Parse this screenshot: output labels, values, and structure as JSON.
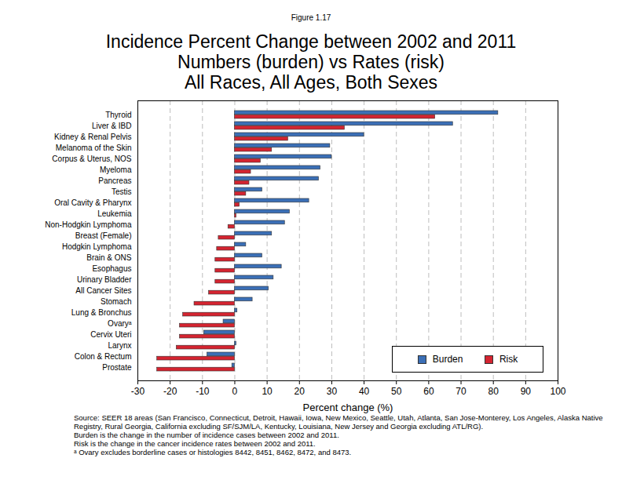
{
  "chart_data": {
    "type": "bar",
    "orientation": "horizontal",
    "figure_label": "Figure 1.17",
    "title": "Incidence Percent Change between 2002 and 2011",
    "subtitle": [
      "Numbers (burden) vs Rates (risk)",
      "All Races, All Ages, Both Sexes"
    ],
    "x_label": "Percent change (%)",
    "categories": [
      "Thyroid",
      "Liver & IBD",
      "Kidney & Renal Pelvis",
      "Melanoma of the Skin",
      "Corpus & Uterus, NOS",
      "Myeloma",
      "Pancreas",
      "Testis",
      "Oral Cavity & Pharynx",
      "Leukemia",
      "Non-Hodgkin Lymphoma",
      "Breast (Female)",
      "Hodgkin Lymphoma",
      "Brain & ONS",
      "Esophagus",
      "Urinary Bladder",
      "All Cancer Sites",
      "Stomach",
      "Lung & Bronchus",
      "Ovaryᵃ",
      "Cervix Uteri",
      "Larynx",
      "Colon & Rectum",
      "Prostate"
    ],
    "series": [
      {
        "name": "Burden",
        "color": "#3b6fb6",
        "values": [
          81.5,
          67.5,
          40,
          29.5,
          30,
          26.5,
          26,
          8.5,
          23,
          17,
          15.5,
          11.5,
          3.5,
          8.5,
          14.5,
          12,
          10.5,
          5.5,
          0.8,
          -3.5,
          -9.5,
          0.5,
          -8.5,
          -0.8
        ]
      },
      {
        "name": "Risk",
        "color": "#d42430",
        "values": [
          62,
          34,
          16.5,
          11.5,
          8,
          5,
          4.5,
          3.5,
          1.5,
          0.5,
          -2,
          -5,
          -5.5,
          -6,
          -6,
          -6,
          -8,
          -12.5,
          -16,
          -17,
          -17,
          -18,
          -24,
          -24
        ]
      }
    ],
    "xlim": [
      -30,
      100
    ],
    "xticks": [
      -30,
      -20,
      -10,
      0,
      10,
      20,
      30,
      40,
      50,
      60,
      70,
      80,
      90,
      100
    ],
    "grid": true,
    "legend": "lower right",
    "notes": [
      "Source: SEER 18 areas (San Francisco, Connecticut, Detroit, Hawaii, Iowa, New Mexico, Seattle, Utah, Atlanta, San Jose-Monterey, Los Angeles, Alaska Native Registry, Rural Georgia, California excluding SF/SJM/LA, Kentucky, Louisiana, New Jersey and Georgia excluding ATL/RG).",
      "Burden is the change in the number of incidence cases between 2002 and 2011.",
      "Risk is the change in the cancer incidence rates between 2002 and 2011.",
      "ᵃ Ovary excludes borderline cases or histologies 8442, 8451, 8462, 8472, and 8473."
    ]
  }
}
